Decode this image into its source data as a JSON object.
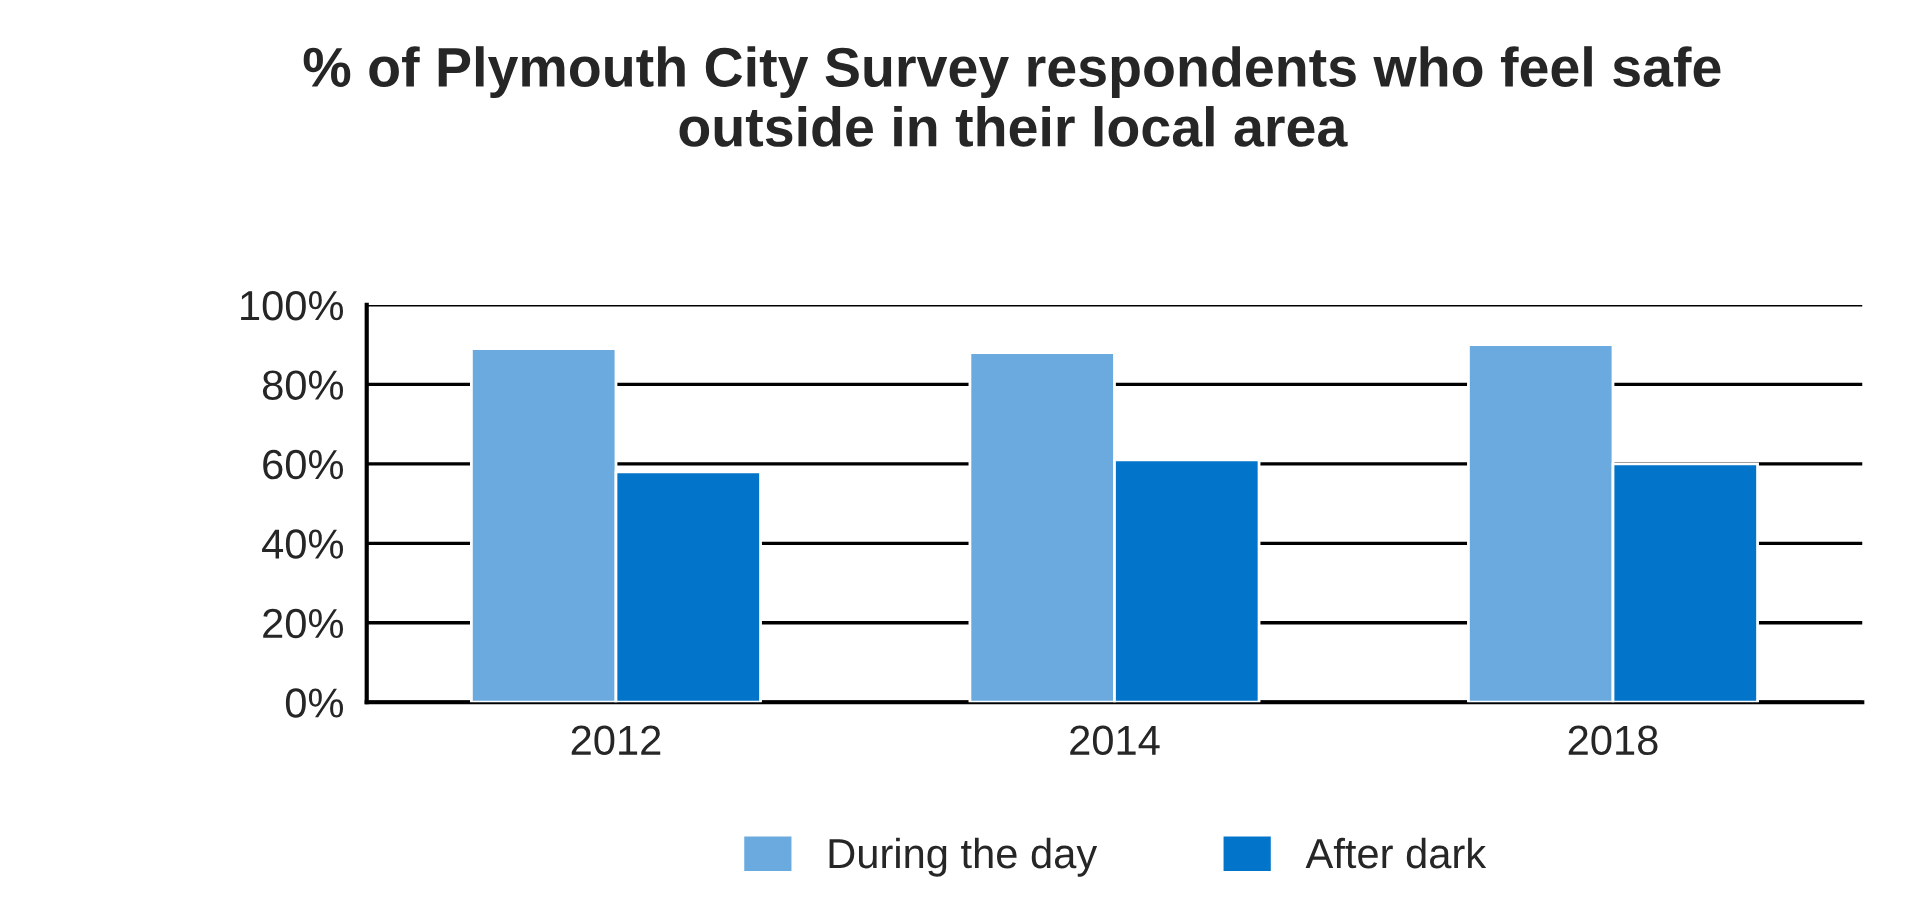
{
  "chart_data": {
    "type": "bar",
    "title": "% of Plymouth City Survey respondents who feel safe\noutside in their local area",
    "categories": [
      "2012",
      "2014",
      "2018"
    ],
    "series": [
      {
        "name": "During the day",
        "color": "#6aaadf",
        "values": [
          89,
          88,
          90
        ]
      },
      {
        "name": "After dark",
        "color": "#0274c9",
        "values": [
          58,
          61,
          60
        ]
      }
    ],
    "ylim": [
      0,
      100
    ],
    "yticks": [
      {
        "value": 0,
        "label": "0%"
      },
      {
        "value": 20,
        "label": "20%"
      },
      {
        "value": 40,
        "label": "40%"
      },
      {
        "value": 60,
        "label": "60%"
      },
      {
        "value": 80,
        "label": "80%"
      },
      {
        "value": 100,
        "label": "100%"
      }
    ],
    "grid": "y",
    "legend": "bottom"
  }
}
